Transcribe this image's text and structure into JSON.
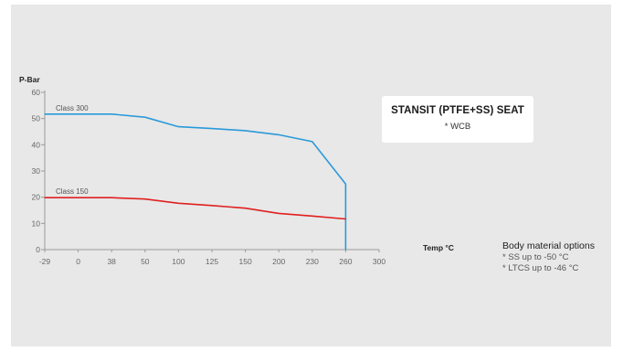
{
  "chart_data": {
    "type": "line",
    "ylabel": "P-Bar",
    "xlabel": "Temp °C",
    "ylim": [
      0,
      60
    ],
    "yticks": [
      "0",
      "10",
      "20",
      "30",
      "40",
      "50",
      "60"
    ],
    "xticks": [
      "-29",
      "0",
      "38",
      "50",
      "100",
      "125",
      "150",
      "200",
      "230",
      "260",
      "300"
    ],
    "grid": false,
    "series": [
      {
        "name": "Class 300",
        "color": "#2a9ad9",
        "x": [
          "-29",
          "0",
          "38",
          "50",
          "100",
          "125",
          "150",
          "200",
          "230",
          "260",
          "260"
        ],
        "values": [
          51.7,
          51.7,
          51.7,
          50.5,
          46.9,
          46.2,
          45.4,
          43.8,
          41.2,
          25,
          0
        ]
      },
      {
        "name": "Class 150",
        "color": "#e02020",
        "x": [
          "-29",
          "0",
          "38",
          "50",
          "100",
          "125",
          "150",
          "200",
          "230",
          "260"
        ],
        "values": [
          19.8,
          19.8,
          19.8,
          19.3,
          17.7,
          16.8,
          15.8,
          13.8,
          12.8,
          11.7
        ]
      }
    ]
  },
  "info_box": {
    "title": "STANSIT (PTFE+SS) SEAT",
    "subtitle": "* WCB"
  },
  "body_options": {
    "title": "Body material options",
    "items": [
      "* SS up to -50 °C",
      "* LTCS up to -46 °C"
    ]
  }
}
